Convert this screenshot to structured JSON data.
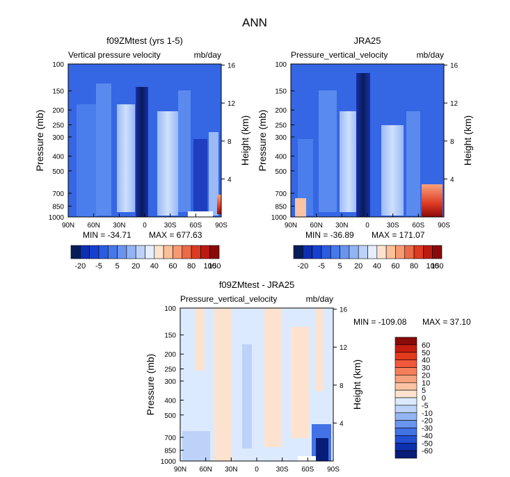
{
  "page_title": "ANN",
  "colors": {
    "deep_blue": "#0a1a8c",
    "mid_blue": "#2d5fe0",
    "light_blue": "#a9c4f5",
    "pale_blue": "#dceaff",
    "pale_orange": "#fde3cf",
    "deep_red": "#8a0a0a"
  },
  "chart_data": [
    {
      "id": "panel1",
      "type": "heatmap",
      "title": "f09ZMtest (yrs 1-5)",
      "subtitle_left": "Vertical pressure velocity",
      "subtitle_right": "mb/day",
      "ylabel": "Pressure (mb)",
      "y2label": "Height (km)",
      "x_tick_labels": [
        "90N",
        "60N",
        "30N",
        "0",
        "30S",
        "60S",
        "90S"
      ],
      "x_tick_values": [
        90,
        60,
        30,
        0,
        -30,
        -60,
        -90
      ],
      "y_tick_labels": [
        "100",
        "150",
        "200",
        "250",
        "300",
        "400",
        "500",
        "700",
        "850",
        "1000"
      ],
      "y_tick_values": [
        100,
        150,
        200,
        250,
        300,
        400,
        500,
        700,
        850,
        1000
      ],
      "y2_tick_labels": [
        "16",
        "12",
        "8",
        "4"
      ],
      "y2_tick_values": [
        16,
        12,
        8,
        4
      ],
      "ylim": [
        100,
        1000
      ],
      "min_text": "MIN = -34.71",
      "max_text": "MAX = 677.63",
      "min": -34.71,
      "max": 677.63
    },
    {
      "id": "panel2",
      "type": "heatmap",
      "title": "JRA25",
      "subtitle_left": "Pressure_vertical_velocity",
      "subtitle_right": "mb/day",
      "ylabel": "Pressure (mb)",
      "y2label": "Height (km)",
      "x_tick_labels": [
        "90N",
        "60N",
        "30N",
        "0",
        "30S",
        "60S",
        "90S"
      ],
      "x_tick_values": [
        90,
        60,
        30,
        0,
        -30,
        -60,
        -90
      ],
      "y_tick_labels": [
        "100",
        "150",
        "200",
        "250",
        "300",
        "400",
        "500",
        "700",
        "850",
        "1000"
      ],
      "y_tick_values": [
        100,
        150,
        200,
        250,
        300,
        400,
        500,
        700,
        850,
        1000
      ],
      "y2_tick_labels": [
        "16",
        "12",
        "8",
        "4"
      ],
      "y2_tick_values": [
        16,
        12,
        8,
        4
      ],
      "ylim": [
        100,
        1000
      ],
      "min_text": "MIN = -36.89",
      "max_text": "MAX = 171.07",
      "min": -36.89,
      "max": 171.07
    },
    {
      "id": "panel3",
      "type": "heatmap",
      "title": "f09ZMtest - JRA25",
      "subtitle_left": "Pressure_vertical_velocity",
      "subtitle_right": "mb/day",
      "ylabel": "Pressure (mb)",
      "y2label": "Height (km)",
      "x_tick_labels": [
        "90N",
        "60N",
        "30N",
        "0",
        "30S",
        "60S",
        "90S"
      ],
      "x_tick_values": [
        90,
        60,
        30,
        0,
        -30,
        -60,
        -90
      ],
      "y_tick_labels": [
        "100",
        "150",
        "200",
        "250",
        "300",
        "400",
        "500",
        "700",
        "850",
        "1000"
      ],
      "y_tick_values": [
        100,
        150,
        200,
        250,
        300,
        400,
        500,
        700,
        850,
        1000
      ],
      "y2_tick_labels": [
        "16",
        "12",
        "8",
        "4"
      ],
      "y2_tick_values": [
        16,
        12,
        8,
        4
      ],
      "ylim": [
        100,
        1000
      ],
      "min_text": "MIN = -109.08",
      "max_text": "MAX =  37.10",
      "min": -109.08,
      "max": 37.1
    }
  ],
  "colorbar_top": {
    "labels": [
      "-20",
      "-5",
      "5",
      "20",
      "40",
      "60",
      "80",
      "100",
      "150"
    ],
    "levels": [
      -20,
      -5,
      5,
      20,
      40,
      60,
      80,
      100,
      150
    ],
    "colors": [
      "#081d58",
      "#0d2fb0",
      "#1540d0",
      "#2a5be0",
      "#4678ea",
      "#6994f0",
      "#92b3f5",
      "#bcd2f8",
      "#e4eefc",
      "#fde3cf",
      "#fbbf9a",
      "#f79a72",
      "#ec6a48",
      "#dc3a22",
      "#bb1a10",
      "#8a0a0a"
    ]
  },
  "colorbar_diff": {
    "labels": [
      "60",
      "50",
      "40",
      "30",
      "20",
      "10",
      "5",
      "0",
      "-5",
      "-10",
      "-20",
      "-30",
      "-40",
      "-50",
      "-60"
    ],
    "levels": [
      60,
      50,
      40,
      30,
      20,
      10,
      5,
      0,
      -5,
      -10,
      -20,
      -30,
      -40,
      -50,
      -60
    ],
    "colors": [
      "#8a0a0a",
      "#c41e10",
      "#e43a1c",
      "#f2583a",
      "#f77e5a",
      "#f9a27e",
      "#fbc3a4",
      "#fde3cf",
      "#dceaff",
      "#bcd2f8",
      "#94b5f5",
      "#6a95ef",
      "#4272e6",
      "#2250d4",
      "#0e2fae",
      "#081d78"
    ]
  }
}
